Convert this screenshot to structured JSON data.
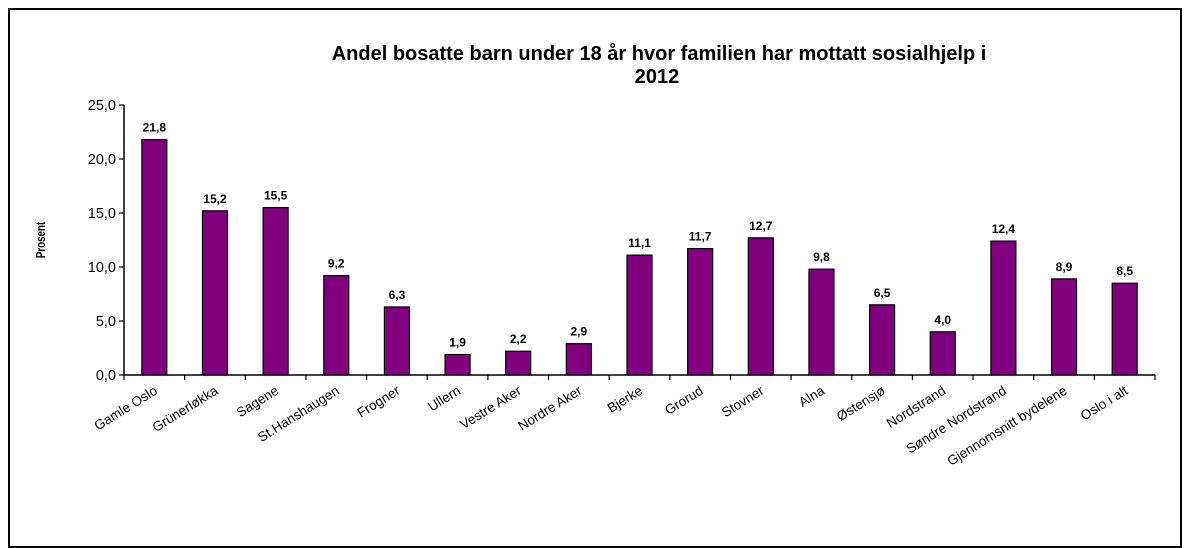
{
  "chart_data": {
    "type": "bar",
    "title_line1": "Andel bosatte barn under 18 år hvor familien har mottatt  sosialhjelp i",
    "title_line2": "2012",
    "xlabel": "",
    "ylabel": "Prosent",
    "ylim": [
      0,
      25
    ],
    "yticks": [
      "0,0",
      "5,0",
      "10,0",
      "15,0",
      "20,0",
      "25,0"
    ],
    "grid": false,
    "legend": "none",
    "bar_color": "#800080",
    "categories": [
      "Gamle Oslo",
      "Grünerløkka",
      "Sagene",
      "St.Hanshaugen",
      "Frogner",
      "Ullern",
      "Vestre Aker",
      "Nordre Aker",
      "Bjerke",
      "Grorud",
      "Stovner",
      "Alna",
      "Østensjø",
      "Nordstrand",
      "Søndre Nordstrand",
      "Gjennomsnitt bydelene",
      "Oslo i alt"
    ],
    "values": [
      21.8,
      15.2,
      15.5,
      9.2,
      6.3,
      1.9,
      2.2,
      2.9,
      11.1,
      11.7,
      12.7,
      9.8,
      6.5,
      4.0,
      12.4,
      8.9,
      8.5
    ],
    "value_labels": [
      "21,8",
      "15,2",
      "15,5",
      "9,2",
      "6,3",
      "1,9",
      "2,2",
      "2,9",
      "11,1",
      "11,7",
      "12,7",
      "9,8",
      "6,5",
      "4,0",
      "12,4",
      "8,9",
      "8,5"
    ]
  }
}
